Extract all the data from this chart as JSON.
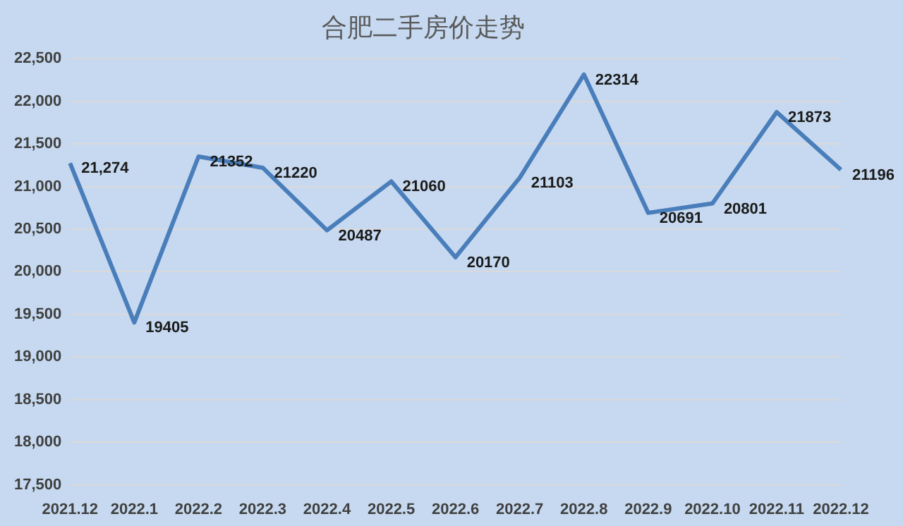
{
  "chart_data": {
    "type": "line",
    "title": "合肥二手房价走势",
    "categories": [
      "2021.12",
      "2022.1",
      "2022.2",
      "2022.3",
      "2022.4",
      "2022.5",
      "2022.6",
      "2022.7",
      "2022.8",
      "2022.9",
      "2022.10",
      "2022.11",
      "2022.12"
    ],
    "series": [
      {
        "color": "#4a7ebb",
        "values": [
          21274,
          19405,
          21352,
          21220,
          20487,
          21060,
          20170,
          21103,
          22314,
          20691,
          20801,
          21873,
          21196
        ],
        "value_labels": [
          "21,274",
          "19405",
          "21352",
          "21220",
          "20487",
          "21060",
          "20170",
          "21103",
          "22314",
          "20691",
          "20801",
          "21873",
          "21196"
        ]
      }
    ],
    "ylim": [
      17500,
      22500
    ],
    "yticks": [
      {
        "value": 17500,
        "label": "17,500"
      },
      {
        "value": 18000,
        "label": "18,000"
      },
      {
        "value": 18500,
        "label": "18,500"
      },
      {
        "value": 19000,
        "label": "19,000"
      },
      {
        "value": 19500,
        "label": "19,500"
      },
      {
        "value": 20000,
        "label": "20,000"
      },
      {
        "value": 20500,
        "label": "20,500"
      },
      {
        "value": 21000,
        "label": "21,000"
      },
      {
        "value": 21500,
        "label": "21,500"
      },
      {
        "value": 22000,
        "label": "22,000"
      },
      {
        "value": 22500,
        "label": "22,500"
      }
    ],
    "grid": "y",
    "legend": false,
    "marker": "none",
    "line_style": "solid"
  }
}
